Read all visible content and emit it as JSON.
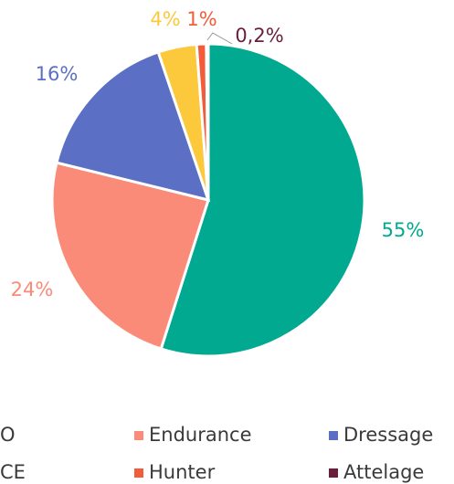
{
  "chart_data": {
    "type": "pie",
    "categories": [
      "O",
      "Endurance",
      "Dressage",
      "CE",
      "Hunter",
      "Attelage"
    ],
    "values": [
      55,
      24,
      16,
      4,
      1,
      0.2
    ],
    "value_labels": [
      "55%",
      "24%",
      "16%",
      "4%",
      "1%",
      "0,2%"
    ],
    "colors": [
      "#00a98f",
      "#f98b78",
      "#5b70c4",
      "#fcc83c",
      "#f25c3a",
      "#6b1d3c"
    ]
  }
}
